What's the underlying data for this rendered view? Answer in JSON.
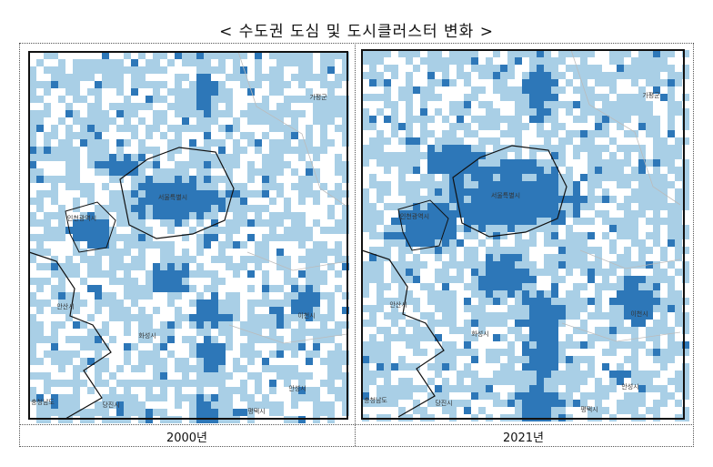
{
  "title": "< 수도권 도심 및 도시클러스터 변화 >",
  "panels": [
    {
      "caption": "2000년",
      "labels": [
        "서울특별시",
        "인천광역시",
        "가평군",
        "화성시",
        "안성시",
        "평택시",
        "이천시",
        "충청남도",
        "당진시",
        "안산시"
      ]
    },
    {
      "caption": "2021년",
      "labels": [
        "서울특별시",
        "인천광역시",
        "가평군",
        "화성시",
        "안성시",
        "평택시",
        "이천시",
        "충청남도",
        "당진시",
        "안산시"
      ]
    }
  ]
}
